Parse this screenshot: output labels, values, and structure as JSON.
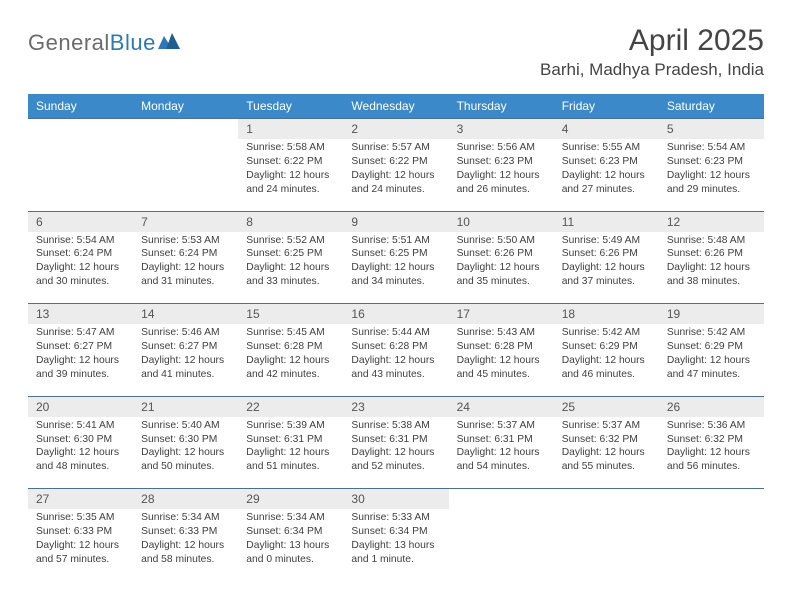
{
  "logo": {
    "general": "General",
    "blue": "Blue"
  },
  "title": "April 2025",
  "location": "Barhi, Madhya Pradesh, India",
  "header_bg": "#3b89c9",
  "num_row_bg": "#ececec",
  "border_color": "#4a6f8f",
  "text_color": "#404040",
  "font_size_body": 10.3,
  "font_size_daynum": 12,
  "days": [
    "Sunday",
    "Monday",
    "Tuesday",
    "Wednesday",
    "Thursday",
    "Friday",
    "Saturday"
  ],
  "weeks": [
    {
      "nums": [
        "",
        "",
        "1",
        "2",
        "3",
        "4",
        "5"
      ],
      "cells": [
        null,
        null,
        {
          "sun": "Sunrise: 5:58 AM",
          "set": "Sunset: 6:22 PM",
          "d1": "Daylight: 12 hours",
          "d2": "and 24 minutes."
        },
        {
          "sun": "Sunrise: 5:57 AM",
          "set": "Sunset: 6:22 PM",
          "d1": "Daylight: 12 hours",
          "d2": "and 24 minutes."
        },
        {
          "sun": "Sunrise: 5:56 AM",
          "set": "Sunset: 6:23 PM",
          "d1": "Daylight: 12 hours",
          "d2": "and 26 minutes."
        },
        {
          "sun": "Sunrise: 5:55 AM",
          "set": "Sunset: 6:23 PM",
          "d1": "Daylight: 12 hours",
          "d2": "and 27 minutes."
        },
        {
          "sun": "Sunrise: 5:54 AM",
          "set": "Sunset: 6:23 PM",
          "d1": "Daylight: 12 hours",
          "d2": "and 29 minutes."
        }
      ]
    },
    {
      "nums": [
        "6",
        "7",
        "8",
        "9",
        "10",
        "11",
        "12"
      ],
      "cells": [
        {
          "sun": "Sunrise: 5:54 AM",
          "set": "Sunset: 6:24 PM",
          "d1": "Daylight: 12 hours",
          "d2": "and 30 minutes."
        },
        {
          "sun": "Sunrise: 5:53 AM",
          "set": "Sunset: 6:24 PM",
          "d1": "Daylight: 12 hours",
          "d2": "and 31 minutes."
        },
        {
          "sun": "Sunrise: 5:52 AM",
          "set": "Sunset: 6:25 PM",
          "d1": "Daylight: 12 hours",
          "d2": "and 33 minutes."
        },
        {
          "sun": "Sunrise: 5:51 AM",
          "set": "Sunset: 6:25 PM",
          "d1": "Daylight: 12 hours",
          "d2": "and 34 minutes."
        },
        {
          "sun": "Sunrise: 5:50 AM",
          "set": "Sunset: 6:26 PM",
          "d1": "Daylight: 12 hours",
          "d2": "and 35 minutes."
        },
        {
          "sun": "Sunrise: 5:49 AM",
          "set": "Sunset: 6:26 PM",
          "d1": "Daylight: 12 hours",
          "d2": "and 37 minutes."
        },
        {
          "sun": "Sunrise: 5:48 AM",
          "set": "Sunset: 6:26 PM",
          "d1": "Daylight: 12 hours",
          "d2": "and 38 minutes."
        }
      ]
    },
    {
      "nums": [
        "13",
        "14",
        "15",
        "16",
        "17",
        "18",
        "19"
      ],
      "cells": [
        {
          "sun": "Sunrise: 5:47 AM",
          "set": "Sunset: 6:27 PM",
          "d1": "Daylight: 12 hours",
          "d2": "and 39 minutes."
        },
        {
          "sun": "Sunrise: 5:46 AM",
          "set": "Sunset: 6:27 PM",
          "d1": "Daylight: 12 hours",
          "d2": "and 41 minutes."
        },
        {
          "sun": "Sunrise: 5:45 AM",
          "set": "Sunset: 6:28 PM",
          "d1": "Daylight: 12 hours",
          "d2": "and 42 minutes."
        },
        {
          "sun": "Sunrise: 5:44 AM",
          "set": "Sunset: 6:28 PM",
          "d1": "Daylight: 12 hours",
          "d2": "and 43 minutes."
        },
        {
          "sun": "Sunrise: 5:43 AM",
          "set": "Sunset: 6:28 PM",
          "d1": "Daylight: 12 hours",
          "d2": "and 45 minutes."
        },
        {
          "sun": "Sunrise: 5:42 AM",
          "set": "Sunset: 6:29 PM",
          "d1": "Daylight: 12 hours",
          "d2": "and 46 minutes."
        },
        {
          "sun": "Sunrise: 5:42 AM",
          "set": "Sunset: 6:29 PM",
          "d1": "Daylight: 12 hours",
          "d2": "and 47 minutes."
        }
      ]
    },
    {
      "nums": [
        "20",
        "21",
        "22",
        "23",
        "24",
        "25",
        "26"
      ],
      "cells": [
        {
          "sun": "Sunrise: 5:41 AM",
          "set": "Sunset: 6:30 PM",
          "d1": "Daylight: 12 hours",
          "d2": "and 48 minutes."
        },
        {
          "sun": "Sunrise: 5:40 AM",
          "set": "Sunset: 6:30 PM",
          "d1": "Daylight: 12 hours",
          "d2": "and 50 minutes."
        },
        {
          "sun": "Sunrise: 5:39 AM",
          "set": "Sunset: 6:31 PM",
          "d1": "Daylight: 12 hours",
          "d2": "and 51 minutes."
        },
        {
          "sun": "Sunrise: 5:38 AM",
          "set": "Sunset: 6:31 PM",
          "d1": "Daylight: 12 hours",
          "d2": "and 52 minutes."
        },
        {
          "sun": "Sunrise: 5:37 AM",
          "set": "Sunset: 6:31 PM",
          "d1": "Daylight: 12 hours",
          "d2": "and 54 minutes."
        },
        {
          "sun": "Sunrise: 5:37 AM",
          "set": "Sunset: 6:32 PM",
          "d1": "Daylight: 12 hours",
          "d2": "and 55 minutes."
        },
        {
          "sun": "Sunrise: 5:36 AM",
          "set": "Sunset: 6:32 PM",
          "d1": "Daylight: 12 hours",
          "d2": "and 56 minutes."
        }
      ]
    },
    {
      "nums": [
        "27",
        "28",
        "29",
        "30",
        "",
        "",
        ""
      ],
      "cells": [
        {
          "sun": "Sunrise: 5:35 AM",
          "set": "Sunset: 6:33 PM",
          "d1": "Daylight: 12 hours",
          "d2": "and 57 minutes."
        },
        {
          "sun": "Sunrise: 5:34 AM",
          "set": "Sunset: 6:33 PM",
          "d1": "Daylight: 12 hours",
          "d2": "and 58 minutes."
        },
        {
          "sun": "Sunrise: 5:34 AM",
          "set": "Sunset: 6:34 PM",
          "d1": "Daylight: 13 hours",
          "d2": "and 0 minutes."
        },
        {
          "sun": "Sunrise: 5:33 AM",
          "set": "Sunset: 6:34 PM",
          "d1": "Daylight: 13 hours",
          "d2": "and 1 minute."
        },
        null,
        null,
        null
      ]
    }
  ]
}
